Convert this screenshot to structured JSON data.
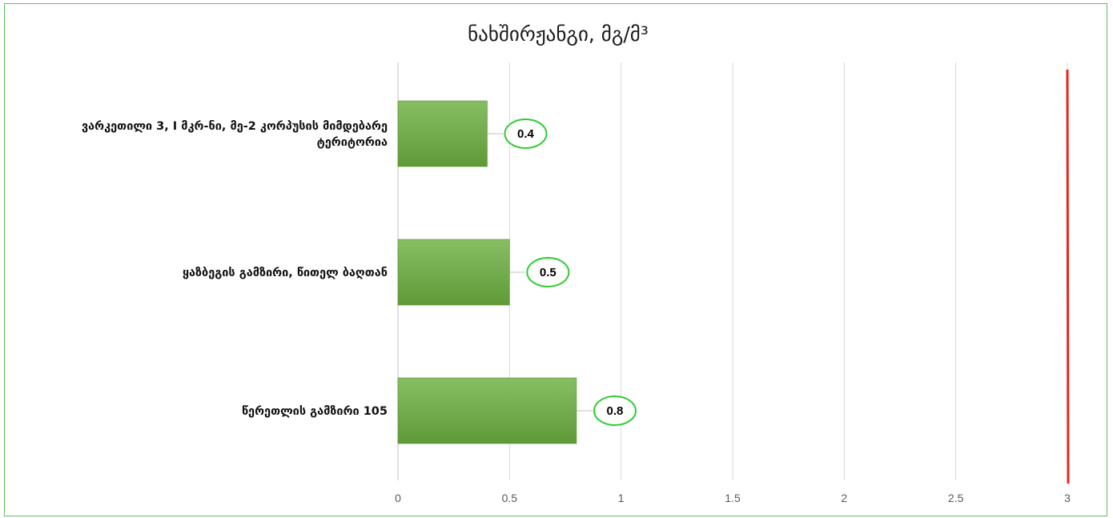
{
  "chart_data": {
    "type": "bar",
    "orientation": "horizontal",
    "title": "ნახშირჟანგი, მგ/მ³",
    "categories": [
      [
        "ვარკეთილი 3, I მკრ-ნი, მე-2 კორპუსის მიმდებარე",
        "ტერიტორია"
      ],
      [
        "ყაზბეგის გამზირი, წითელ ბაღთან"
      ],
      [
        "წერეთლის გამზირი 105"
      ]
    ],
    "values": [
      0.4,
      0.5,
      0.8
    ],
    "xlim": [
      0,
      3
    ],
    "xticks": [
      "0",
      "0.5",
      "1",
      "1.5",
      "2",
      "2.5",
      "3"
    ],
    "reference_line": {
      "value": 3,
      "color": "#e8261c"
    },
    "grid": true,
    "bar_color_top": "#86bf63",
    "bar_color_bottom": "#5f9a38",
    "label_border_color": "#2ecc2e",
    "frame_color": "#5dc25d",
    "legend": "none"
  }
}
